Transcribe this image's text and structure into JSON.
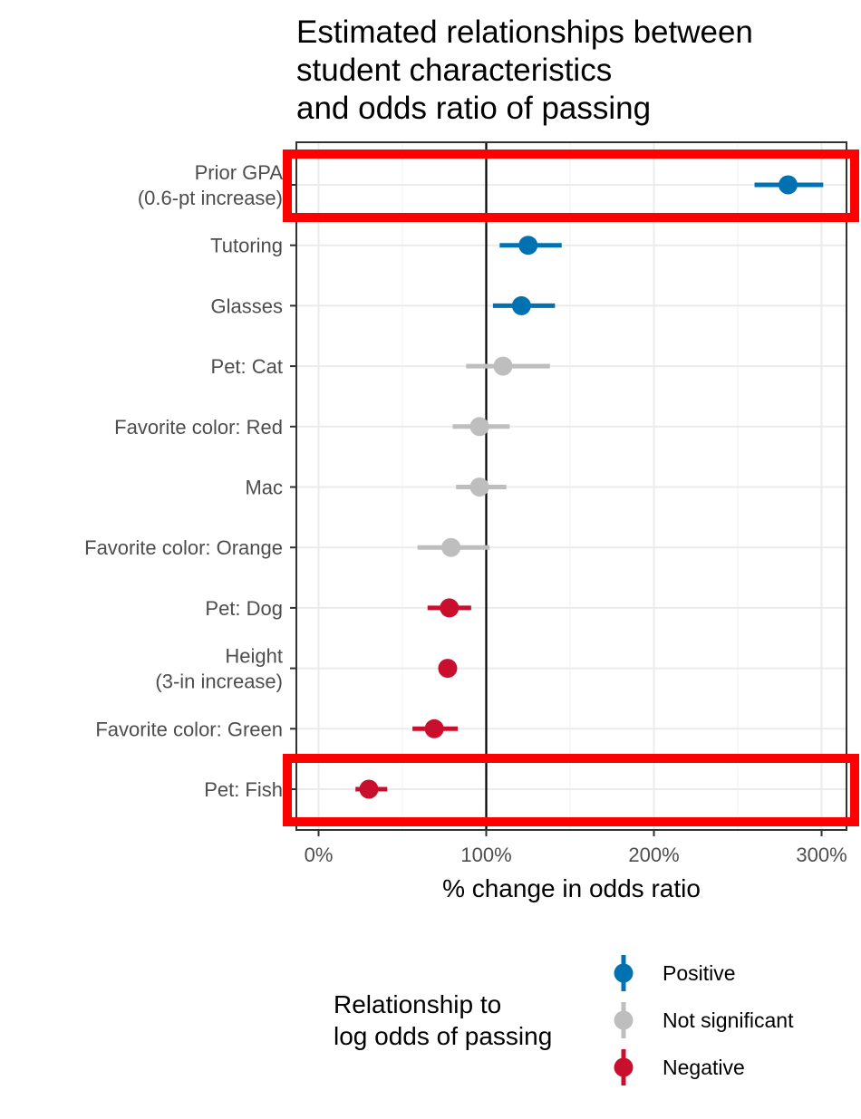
{
  "chart_data": {
    "type": "scatter",
    "subtype": "point-range (odds ratio with confidence intervals)",
    "title_lines": [
      "Estimated relationships between",
      "student characteristics",
      "and odds ratio of passing"
    ],
    "xlabel": "% change in odds ratio",
    "ylabel": "",
    "x_ticks": [
      "0%",
      "100%",
      "200%",
      "300%"
    ],
    "x_tick_values": [
      0,
      100,
      200,
      300
    ],
    "xlim": [
      -12,
      315
    ],
    "reference_line_x": 100,
    "grid": true,
    "legend_title_lines": [
      "Relationship to",
      "log odds of passing"
    ],
    "legend_position": "bottom",
    "legend": [
      {
        "key": "Positive",
        "label": "Positive",
        "color": "#0072B2"
      },
      {
        "key": "Not significant",
        "label": "Not significant",
        "color": "#BEBEBE"
      },
      {
        "key": "Negative",
        "label": "Negative",
        "color": "#C8102E"
      }
    ],
    "points": [
      {
        "label_lines": [
          "Prior GPA",
          "(0.6-pt increase)"
        ],
        "x": 280,
        "low": 260,
        "high": 301,
        "relationship": "Positive",
        "highlighted": true
      },
      {
        "label_lines": [
          "Tutoring"
        ],
        "x": 125,
        "low": 108,
        "high": 145,
        "relationship": "Positive",
        "highlighted": false
      },
      {
        "label_lines": [
          "Glasses"
        ],
        "x": 121,
        "low": 104,
        "high": 141,
        "relationship": "Positive",
        "highlighted": false
      },
      {
        "label_lines": [
          "Pet: Cat"
        ],
        "x": 110,
        "low": 88,
        "high": 138,
        "relationship": "Not significant",
        "highlighted": false
      },
      {
        "label_lines": [
          "Favorite color: Red"
        ],
        "x": 96,
        "low": 80,
        "high": 114,
        "relationship": "Not significant",
        "highlighted": false
      },
      {
        "label_lines": [
          "Mac"
        ],
        "x": 96,
        "low": 82,
        "high": 112,
        "relationship": "Not significant",
        "highlighted": false
      },
      {
        "label_lines": [
          "Favorite color: Orange"
        ],
        "x": 79,
        "low": 59,
        "high": 102,
        "relationship": "Not significant",
        "highlighted": false
      },
      {
        "label_lines": [
          "Pet: Dog"
        ],
        "x": 78,
        "low": 65,
        "high": 91,
        "relationship": "Negative",
        "highlighted": false
      },
      {
        "label_lines": [
          "Height",
          "(3-in increase)"
        ],
        "x": 77,
        "low": 75,
        "high": 79,
        "relationship": "Negative",
        "highlighted": false
      },
      {
        "label_lines": [
          "Favorite color: Green"
        ],
        "x": 69,
        "low": 56,
        "high": 83,
        "relationship": "Negative",
        "highlighted": false
      },
      {
        "label_lines": [
          "Pet: Fish"
        ],
        "x": 30,
        "low": 22,
        "high": 41,
        "relationship": "Negative",
        "highlighted": true
      }
    ],
    "highlight_color": "#FF0000"
  }
}
